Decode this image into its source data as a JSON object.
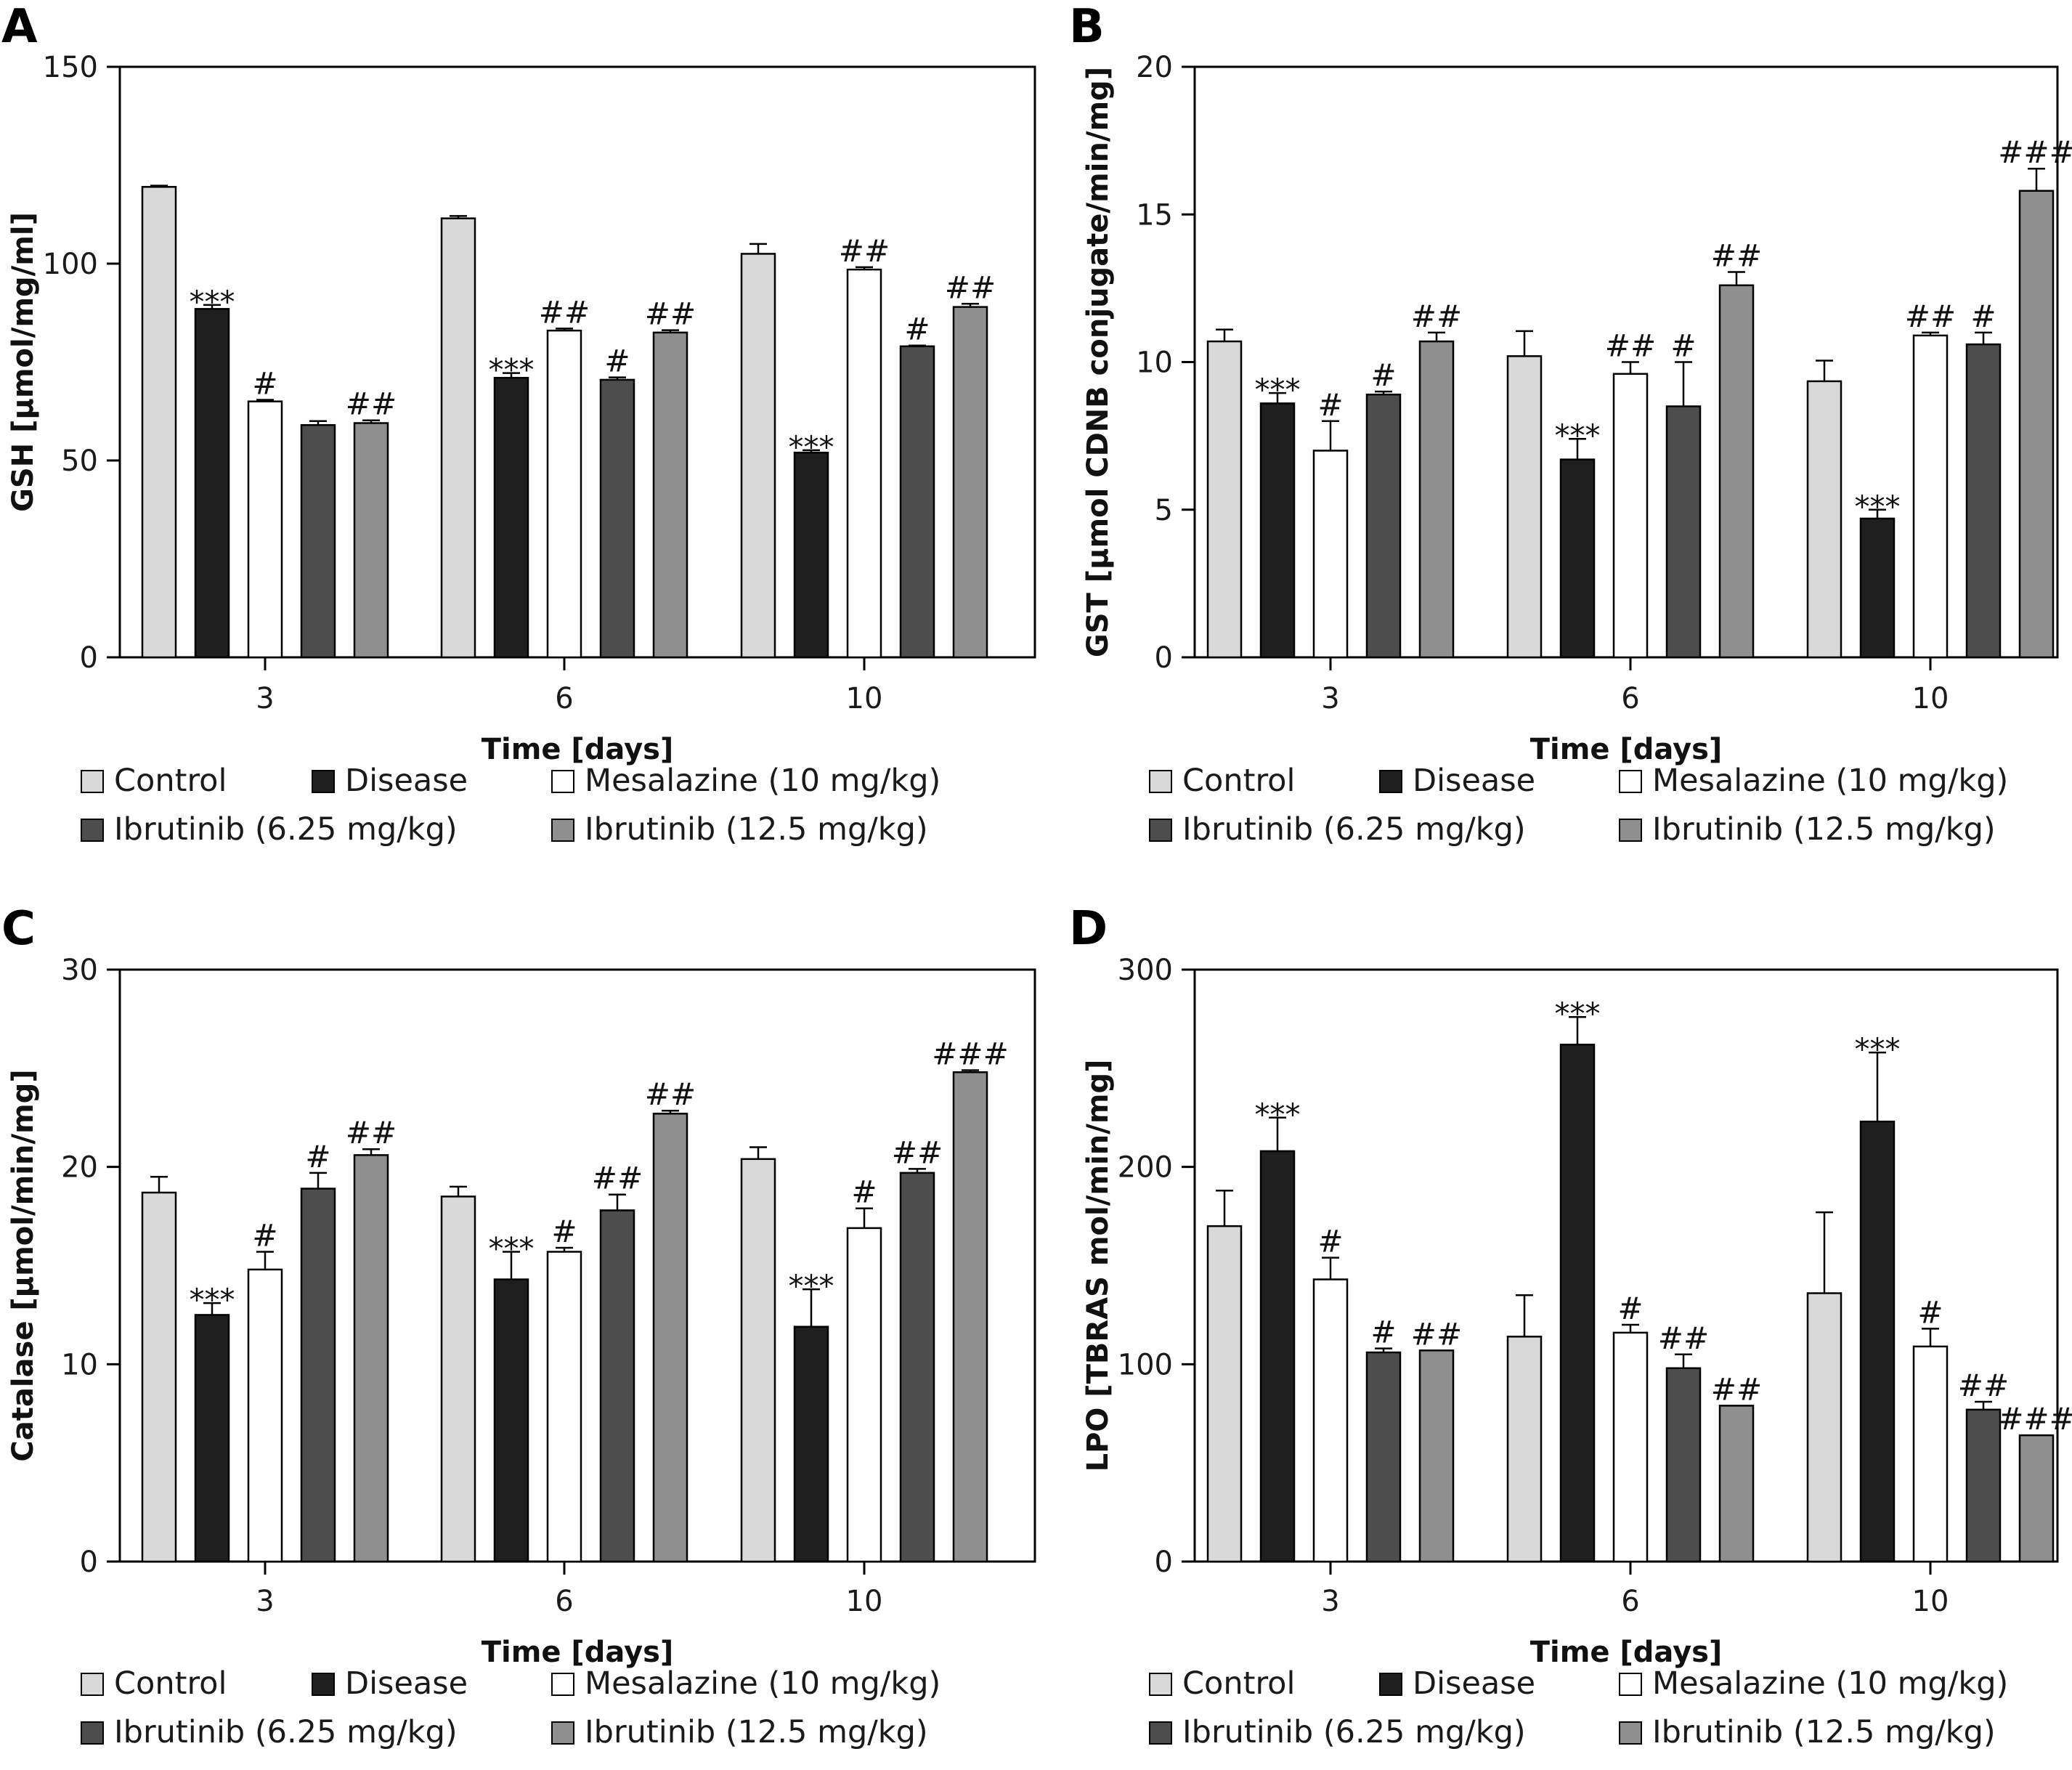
{
  "colors": {
    "Control": "#d9d9d9",
    "Disease": "#1f1f1f",
    "Mesalazine (10 mg/kg)": "#ffffff",
    "Ibrutinib (6.25 mg/kg)": "#4d4d4d",
    "Ibrutinib (12.5 mg/kg)": "#8f8f8f"
  },
  "chart_data": [
    {
      "panel": "A",
      "type": "bar",
      "xlabel": "Time [days]",
      "ylabel": "GSH [µmol/mg/ml]",
      "ylim": [
        0,
        150
      ],
      "yticks": [
        0,
        50,
        100,
        150
      ],
      "categories": [
        "3",
        "6",
        "10"
      ],
      "legend": [
        "Control",
        "Disease",
        "Mesalazine (10 mg/kg)",
        "Ibrutinib (6.25 mg/kg)",
        "Ibrutinib (12.5 mg/kg)"
      ],
      "series": [
        {
          "name": "Control",
          "values": [
            119.5,
            111.5,
            102.5
          ],
          "errors": [
            0.3,
            0.6,
            2.5
          ],
          "labels": [
            "",
            "",
            ""
          ]
        },
        {
          "name": "Disease",
          "values": [
            88.5,
            71.0,
            52.0
          ],
          "errors": [
            1.0,
            1.2,
            0.6
          ],
          "labels": [
            "***",
            "***",
            "***"
          ]
        },
        {
          "name": "Mesalazine (10 mg/kg)",
          "values": [
            65.0,
            83.0,
            98.5
          ],
          "errors": [
            0.4,
            0.5,
            0.6
          ],
          "labels": [
            "#",
            "##",
            "##"
          ]
        },
        {
          "name": "Ibrutinib (6.25 mg/kg)",
          "values": [
            59.0,
            70.5,
            79.0
          ],
          "errors": [
            1.0,
            0.6,
            0.2
          ],
          "labels": [
            "",
            "#",
            "#"
          ]
        },
        {
          "name": "Ibrutinib (12.5 mg/kg)",
          "values": [
            59.5,
            82.5,
            89.0
          ],
          "errors": [
            0.7,
            0.6,
            0.8
          ],
          "labels": [
            "##",
            "##",
            "##"
          ]
        }
      ]
    },
    {
      "panel": "B",
      "type": "bar",
      "xlabel": "Time [days]",
      "ylabel": "GST [µmol CDNB conjugate/min/mg]",
      "ylim": [
        0,
        20
      ],
      "yticks": [
        0,
        5,
        10,
        15,
        20
      ],
      "categories": [
        "3",
        "6",
        "10"
      ],
      "legend": [
        "Control",
        "Disease",
        "Mesalazine (10 mg/kg)",
        "Ibrutinib (6.25 mg/kg)",
        "Ibrutinib (12.5 mg/kg)"
      ],
      "series": [
        {
          "name": "Control",
          "values": [
            10.7,
            10.2,
            9.35
          ],
          "errors": [
            0.4,
            0.85,
            0.7
          ],
          "labels": [
            "",
            "",
            ""
          ]
        },
        {
          "name": "Disease",
          "values": [
            8.6,
            6.7,
            4.7
          ],
          "errors": [
            0.35,
            0.7,
            0.3
          ],
          "labels": [
            "***",
            "***",
            "***"
          ]
        },
        {
          "name": "Mesalazine (10 mg/kg)",
          "values": [
            7.0,
            9.6,
            10.9
          ],
          "errors": [
            1.0,
            0.4,
            0.1
          ],
          "labels": [
            "#",
            "##",
            "##"
          ]
        },
        {
          "name": "Ibrutinib (6.25 mg/kg)",
          "values": [
            8.9,
            8.5,
            10.6
          ],
          "errors": [
            0.1,
            1.5,
            0.4
          ],
          "labels": [
            "#",
            "#",
            "#"
          ]
        },
        {
          "name": "Ibrutinib (12.5 mg/kg)",
          "values": [
            10.7,
            12.6,
            15.8
          ],
          "errors": [
            0.3,
            0.45,
            0.75
          ],
          "labels": [
            "##",
            "##",
            "###"
          ]
        }
      ]
    },
    {
      "panel": "C",
      "type": "bar",
      "xlabel": "Time [days]",
      "ylabel": "Catalase [µmol/min/mg]",
      "ylim": [
        0,
        30
      ],
      "yticks": [
        0,
        10,
        20,
        30
      ],
      "categories": [
        "3",
        "6",
        "10"
      ],
      "legend": [
        "Control",
        "Disease",
        "Mesalazine (10 mg/kg)",
        "Ibrutinib (6.25 mg/kg)",
        "Ibrutinib (12.5 mg/kg)"
      ],
      "series": [
        {
          "name": "Control",
          "values": [
            18.7,
            18.5,
            20.4
          ],
          "errors": [
            0.8,
            0.5,
            0.6
          ],
          "labels": [
            "",
            "",
            ""
          ]
        },
        {
          "name": "Disease",
          "values": [
            12.5,
            14.3,
            11.9
          ],
          "errors": [
            0.6,
            1.4,
            1.9
          ],
          "labels": [
            "***",
            "***",
            "***"
          ]
        },
        {
          "name": "Mesalazine (10 mg/kg)",
          "values": [
            14.8,
            15.7,
            16.9
          ],
          "errors": [
            0.9,
            0.2,
            1.0
          ],
          "labels": [
            "#",
            "#",
            "#"
          ]
        },
        {
          "name": "Ibrutinib (6.25 mg/kg)",
          "values": [
            18.9,
            17.8,
            19.7
          ],
          "errors": [
            0.8,
            0.8,
            0.2
          ],
          "labels": [
            "#",
            "##",
            "##"
          ]
        },
        {
          "name": "Ibrutinib (12.5 mg/kg)",
          "values": [
            20.6,
            22.7,
            24.8
          ],
          "errors": [
            0.3,
            0.15,
            0.1
          ],
          "labels": [
            "##",
            "##",
            "###"
          ]
        }
      ]
    },
    {
      "panel": "D",
      "type": "bar",
      "xlabel": "Time [days]",
      "ylabel": "LPO [TBRAS mol/min/mg]",
      "ylim": [
        0,
        300
      ],
      "yticks": [
        0,
        100,
        200,
        300
      ],
      "categories": [
        "3",
        "6",
        "10"
      ],
      "legend": [
        "Control",
        "Disease",
        "Mesalazine (10 mg/kg)",
        "Ibrutinib (6.25 mg/kg)",
        "Ibrutinib (12.5 mg/kg)"
      ],
      "series": [
        {
          "name": "Control",
          "values": [
            170,
            114,
            136
          ],
          "errors": [
            18,
            21,
            41
          ],
          "labels": [
            "",
            "",
            ""
          ]
        },
        {
          "name": "Disease",
          "values": [
            208,
            262,
            223
          ],
          "errors": [
            17,
            14,
            35
          ],
          "labels": [
            "***",
            "***",
            "***"
          ]
        },
        {
          "name": "Mesalazine (10 mg/kg)",
          "values": [
            143,
            116,
            109
          ],
          "errors": [
            11,
            4,
            9
          ],
          "labels": [
            "#",
            "#",
            "#"
          ]
        },
        {
          "name": "Ibrutinib (6.25 mg/kg)",
          "values": [
            106,
            98,
            77
          ],
          "errors": [
            2,
            7,
            4
          ],
          "labels": [
            "#",
            "##",
            "##"
          ]
        },
        {
          "name": "Ibrutinib (12.5 mg/kg)",
          "values": [
            107,
            79,
            64
          ],
          "errors": [
            0,
            0,
            0
          ],
          "labels": [
            "##",
            "##",
            "###"
          ]
        }
      ]
    }
  ]
}
